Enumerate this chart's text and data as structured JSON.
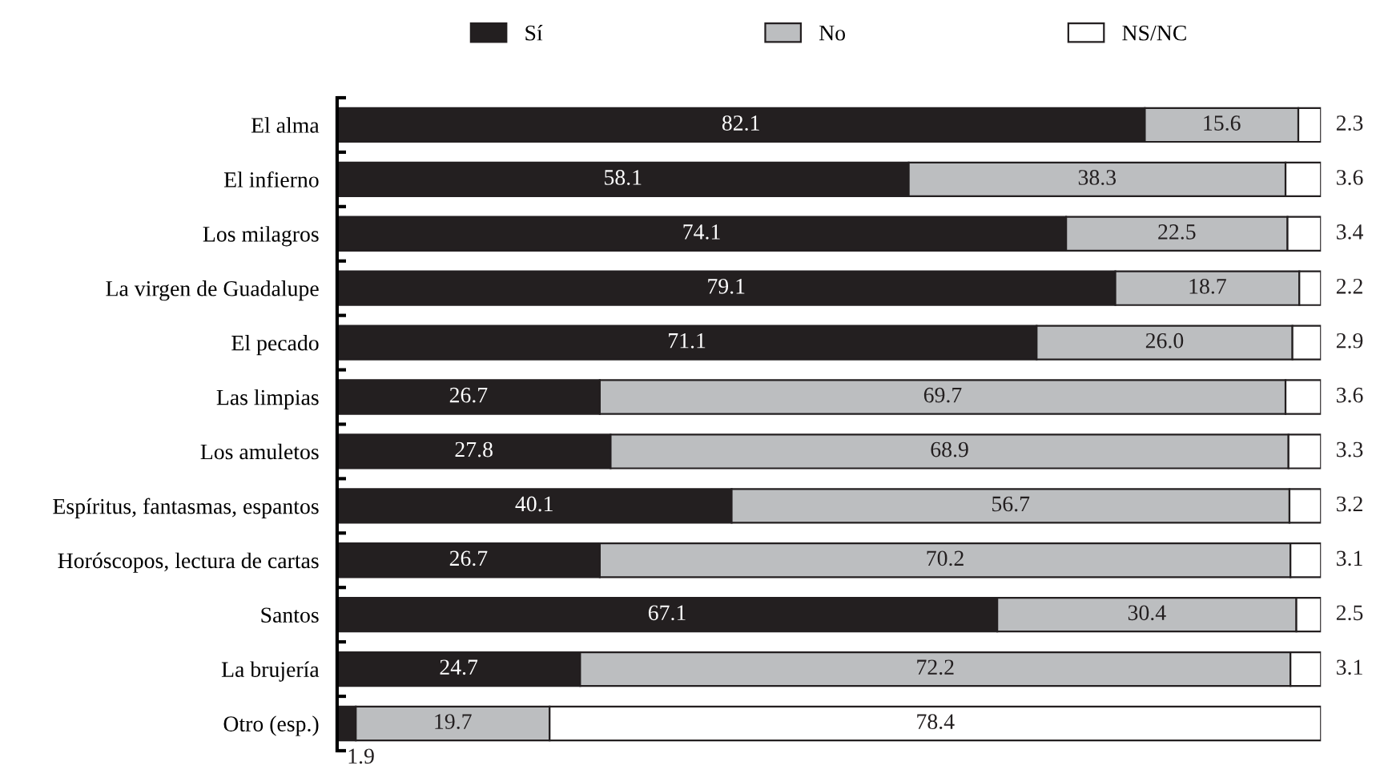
{
  "chart_data": {
    "type": "bar",
    "orientation": "horizontal",
    "stacked": true,
    "data_labels": true,
    "legend": "top",
    "grid": false,
    "categories": [
      "El alma",
      "El infierno",
      "Los milagros",
      "La virgen de Guadalupe",
      "El pecado",
      "Las limpias",
      "Los amuletos",
      "Espíritus, fantasmas, espantos",
      "Horóscopos, lectura de cartas",
      "Santos",
      "La brujería",
      "Otro (esp.)"
    ],
    "series": [
      {
        "name": "Sí",
        "color": "#231f20",
        "values": [
          82.1,
          58.1,
          74.1,
          79.1,
          71.1,
          26.7,
          27.8,
          40.1,
          26.7,
          67.1,
          24.7,
          1.9
        ]
      },
      {
        "name": "No",
        "color": "#bcbec0",
        "values": [
          15.6,
          38.3,
          22.5,
          18.7,
          26.0,
          69.7,
          68.9,
          56.7,
          70.2,
          30.4,
          72.2,
          19.7
        ],
        "value_labels": [
          "15.6",
          "38.3",
          "22.5",
          "18.7",
          "26.0",
          "69.7",
          "68.9",
          "56.7",
          "70.2",
          "30.4",
          "72.2",
          "19.7"
        ]
      },
      {
        "name": "NS/NC",
        "color": "#ffffff",
        "values": [
          2.3,
          3.6,
          3.4,
          2.2,
          2.9,
          3.6,
          3.3,
          3.2,
          3.1,
          2.5,
          3.1,
          78.4
        ]
      }
    ]
  }
}
